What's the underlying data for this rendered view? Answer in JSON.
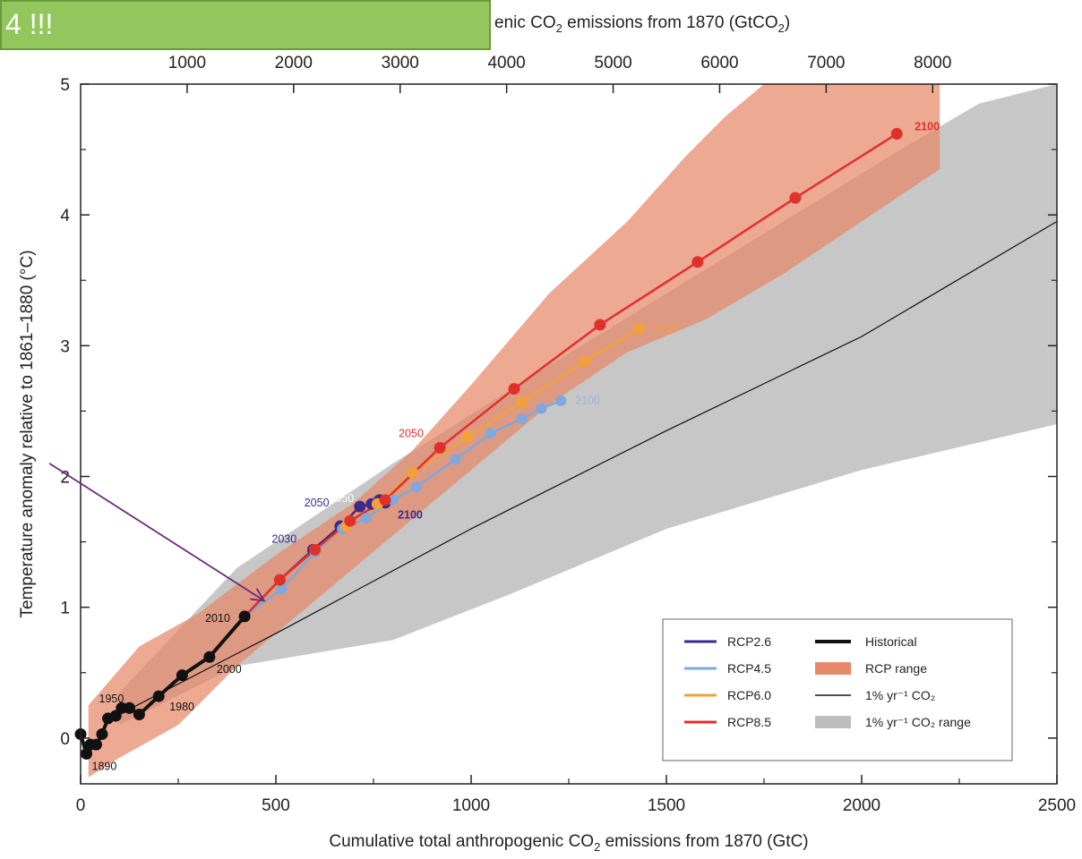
{
  "callout": {
    "text": "4 !!!"
  },
  "colors": {
    "rcp26": "#3b2a8a",
    "rcp45": "#7fa8de",
    "rcp60": "#f2a03a",
    "rcp85": "#e0302a",
    "historical": "#111111",
    "rcp_range": "#e8886a",
    "co2_range": "#bdbdbd",
    "arrow": "#6b2a7a"
  },
  "chart_data": {
    "type": "line",
    "title": "",
    "xlabel": "Cumulative total anthropogenic CO2 emissions from 1870 (GtC)",
    "xlabel_parts": {
      "pre": "Cumulative total anthropogenic CO",
      "sub": "2",
      "post": " emissions from 1870 (GtC)"
    },
    "x2label_parts": {
      "pre": "enic CO",
      "sub": "2",
      "post": " emissions from 1870 (GtCO",
      "sub2": "2",
      "post2": ")"
    },
    "ylabel": "Temperature anomaly relative to 1861–1880 (°C)",
    "xlim": [
      0,
      2500
    ],
    "ylim": [
      -0.35,
      5
    ],
    "x_ticks": [
      0,
      500,
      1000,
      1500,
      2000,
      2500
    ],
    "x_tick_labels": [
      "0",
      "500",
      "1000",
      "1500",
      "2000",
      "2500"
    ],
    "x2_ticks": [
      1000,
      2000,
      3000,
      4000,
      5000,
      6000,
      7000,
      8000
    ],
    "x2_tick_labels": [
      "1000",
      "2000",
      "3000",
      "4000",
      "5000",
      "6000",
      "7000",
      "8000"
    ],
    "y_ticks": [
      0,
      1,
      2,
      3,
      4,
      5
    ],
    "y_tick_labels": [
      "0",
      "1",
      "2",
      "3",
      "4",
      "5"
    ],
    "series": [
      {
        "name": "Historical",
        "color_key": "historical",
        "points": [
          [
            0,
            0.03
          ],
          [
            15,
            -0.12
          ],
          [
            25,
            -0.05
          ],
          [
            40,
            -0.05
          ],
          [
            55,
            0.03
          ],
          [
            70,
            0.15
          ],
          [
            90,
            0.17
          ],
          [
            105,
            0.23
          ],
          [
            125,
            0.23
          ],
          [
            150,
            0.18
          ],
          [
            200,
            0.32
          ],
          [
            260,
            0.48
          ],
          [
            330,
            0.62
          ],
          [
            420,
            0.93
          ]
        ],
        "labels": [
          {
            "i": 1,
            "text": "1890"
          },
          {
            "i": 5,
            "text": "1950"
          },
          {
            "i": 10,
            "text": "1980"
          },
          {
            "i": 12,
            "text": "2000"
          },
          {
            "i": 13,
            "text": "2010"
          }
        ]
      },
      {
        "name": "RCP2.6",
        "color_key": "rcp26",
        "points": [
          [
            420,
            0.93
          ],
          [
            510,
            1.21
          ],
          [
            595,
            1.44
          ],
          [
            665,
            1.62
          ],
          [
            715,
            1.77
          ],
          [
            745,
            1.79
          ],
          [
            765,
            1.82
          ],
          [
            780,
            1.8
          ]
        ],
        "labels": [
          {
            "i": 2,
            "text": "2030"
          },
          {
            "i": 4,
            "text": "2050"
          },
          {
            "i": 7,
            "text": "2100"
          }
        ]
      },
      {
        "name": "RCP4.5",
        "color_key": "rcp45",
        "points": [
          [
            420,
            0.93
          ],
          [
            515,
            1.14
          ],
          [
            600,
            1.42
          ],
          [
            670,
            1.6
          ],
          [
            730,
            1.68
          ],
          [
            800,
            1.82
          ],
          [
            860,
            1.92
          ],
          [
            960,
            2.13
          ],
          [
            1050,
            2.33
          ],
          [
            1130,
            2.44
          ],
          [
            1180,
            2.52
          ],
          [
            1230,
            2.58
          ]
        ],
        "labels": [
          {
            "i": 11,
            "text": "2100"
          }
        ]
      },
      {
        "name": "RCP6.0",
        "color_key": "rcp60",
        "points": [
          [
            420,
            0.93
          ],
          [
            510,
            1.21
          ],
          [
            600,
            1.44
          ],
          [
            680,
            1.62
          ],
          [
            760,
            1.79
          ],
          [
            850,
            2.03
          ],
          [
            990,
            2.3
          ],
          [
            1130,
            2.57
          ],
          [
            1290,
            2.88
          ],
          [
            1430,
            3.13
          ]
        ],
        "labels": [
          {
            "i": 4,
            "text": "2050"
          },
          {
            "i": 9,
            "text": "2100"
          }
        ]
      },
      {
        "name": "RCP8.5",
        "color_key": "rcp85",
        "points": [
          [
            420,
            0.93
          ],
          [
            510,
            1.21
          ],
          [
            600,
            1.44
          ],
          [
            690,
            1.66
          ],
          [
            780,
            1.82
          ],
          [
            920,
            2.22
          ],
          [
            1110,
            2.67
          ],
          [
            1330,
            3.16
          ],
          [
            1580,
            3.64
          ],
          [
            1830,
            4.13
          ],
          [
            2090,
            4.62
          ]
        ],
        "labels": [
          {
            "i": 5,
            "text": "2050"
          },
          {
            "i": 10,
            "text": "2100"
          }
        ]
      },
      {
        "name": "1% yr⁻¹ CO₂",
        "color_key": "historical",
        "points": [
          [
            60,
            0.12
          ],
          [
            500,
            0.8
          ],
          [
            1000,
            1.6
          ],
          [
            1500,
            2.35
          ],
          [
            2000,
            3.07
          ],
          [
            2500,
            3.95
          ]
        ],
        "labels": []
      }
    ],
    "bands": [
      {
        "name": "1% yr⁻¹ CO₂ range",
        "color_key": "co2_range",
        "upper": [
          [
            100,
            0.35
          ],
          [
            400,
            1.3
          ],
          [
            800,
            2.1
          ],
          [
            1200,
            2.85
          ],
          [
            1500,
            3.4
          ],
          [
            1800,
            3.95
          ],
          [
            2100,
            4.5
          ],
          [
            2300,
            4.85
          ],
          [
            2500,
            5.0
          ]
        ],
        "lower": [
          [
            2500,
            2.4
          ],
          [
            2000,
            2.05
          ],
          [
            1500,
            1.6
          ],
          [
            1100,
            1.1
          ],
          [
            800,
            0.75
          ],
          [
            400,
            0.55
          ],
          [
            100,
            0.1
          ]
        ]
      },
      {
        "name": "RCP range",
        "color_key": "rcp_range",
        "upper": [
          [
            20,
            0.25
          ],
          [
            150,
            0.7
          ],
          [
            300,
            0.95
          ],
          [
            500,
            1.4
          ],
          [
            700,
            1.8
          ],
          [
            850,
            2.2
          ],
          [
            1000,
            2.7
          ],
          [
            1200,
            3.4
          ],
          [
            1400,
            3.95
          ],
          [
            1550,
            4.45
          ],
          [
            1650,
            4.75
          ],
          [
            1750,
            5.0
          ]
        ],
        "lower": [
          [
            2200,
            5.0
          ],
          [
            2200,
            4.35
          ],
          [
            2000,
            3.95
          ],
          [
            1800,
            3.55
          ],
          [
            1600,
            3.2
          ],
          [
            1400,
            2.95
          ],
          [
            1200,
            2.55
          ],
          [
            1000,
            2.05
          ],
          [
            800,
            1.55
          ],
          [
            600,
            1.05
          ],
          [
            400,
            0.55
          ],
          [
            250,
            0.1
          ],
          [
            100,
            -0.15
          ],
          [
            20,
            -0.3
          ]
        ]
      }
    ],
    "legend": {
      "position": "bottom-right",
      "left": [
        {
          "label": "RCP2.6",
          "color_key": "rcp26",
          "kind": "line"
        },
        {
          "label": "RCP4.5",
          "color_key": "rcp45",
          "kind": "line"
        },
        {
          "label": "RCP6.0",
          "color_key": "rcp60",
          "kind": "line"
        },
        {
          "label": "RCP8.5",
          "color_key": "rcp85",
          "kind": "line"
        }
      ],
      "right": [
        {
          "label": "Historical",
          "color_key": "historical",
          "kind": "thick"
        },
        {
          "label": "RCP range",
          "color_key": "rcp_range",
          "kind": "patch"
        },
        {
          "label": "1% yr⁻¹ CO₂",
          "color_key": "historical",
          "kind": "thin"
        },
        {
          "label": "1% yr⁻¹ CO₂ range",
          "color_key": "co2_range",
          "kind": "patch"
        }
      ]
    },
    "arrow": {
      "from": [
        -80,
        2.1
      ],
      "to": [
        470,
        1.05
      ]
    }
  }
}
